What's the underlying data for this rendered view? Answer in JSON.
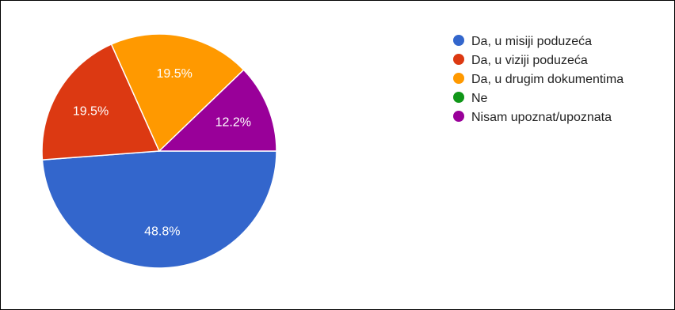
{
  "chart_data": {
    "type": "pie",
    "title": "",
    "slices": [
      {
        "label": "Da, u misiji poduzeća",
        "value": 48.8,
        "value_label": "48.8%",
        "color": "#3366cc"
      },
      {
        "label": "Da, u viziji poduzeća",
        "value": 19.5,
        "value_label": "19.5%",
        "color": "#dc3912"
      },
      {
        "label": "Da, u drugim dokumentima",
        "value": 19.5,
        "value_label": "19.5%",
        "color": "#ff9900"
      },
      {
        "label": "Ne",
        "value": 0,
        "value_label": "",
        "color": "#109618"
      },
      {
        "label": "Nisam upoznat/upoznata",
        "value": 12.2,
        "value_label": "12.2%",
        "color": "#990099"
      }
    ],
    "legend_position": "right"
  }
}
